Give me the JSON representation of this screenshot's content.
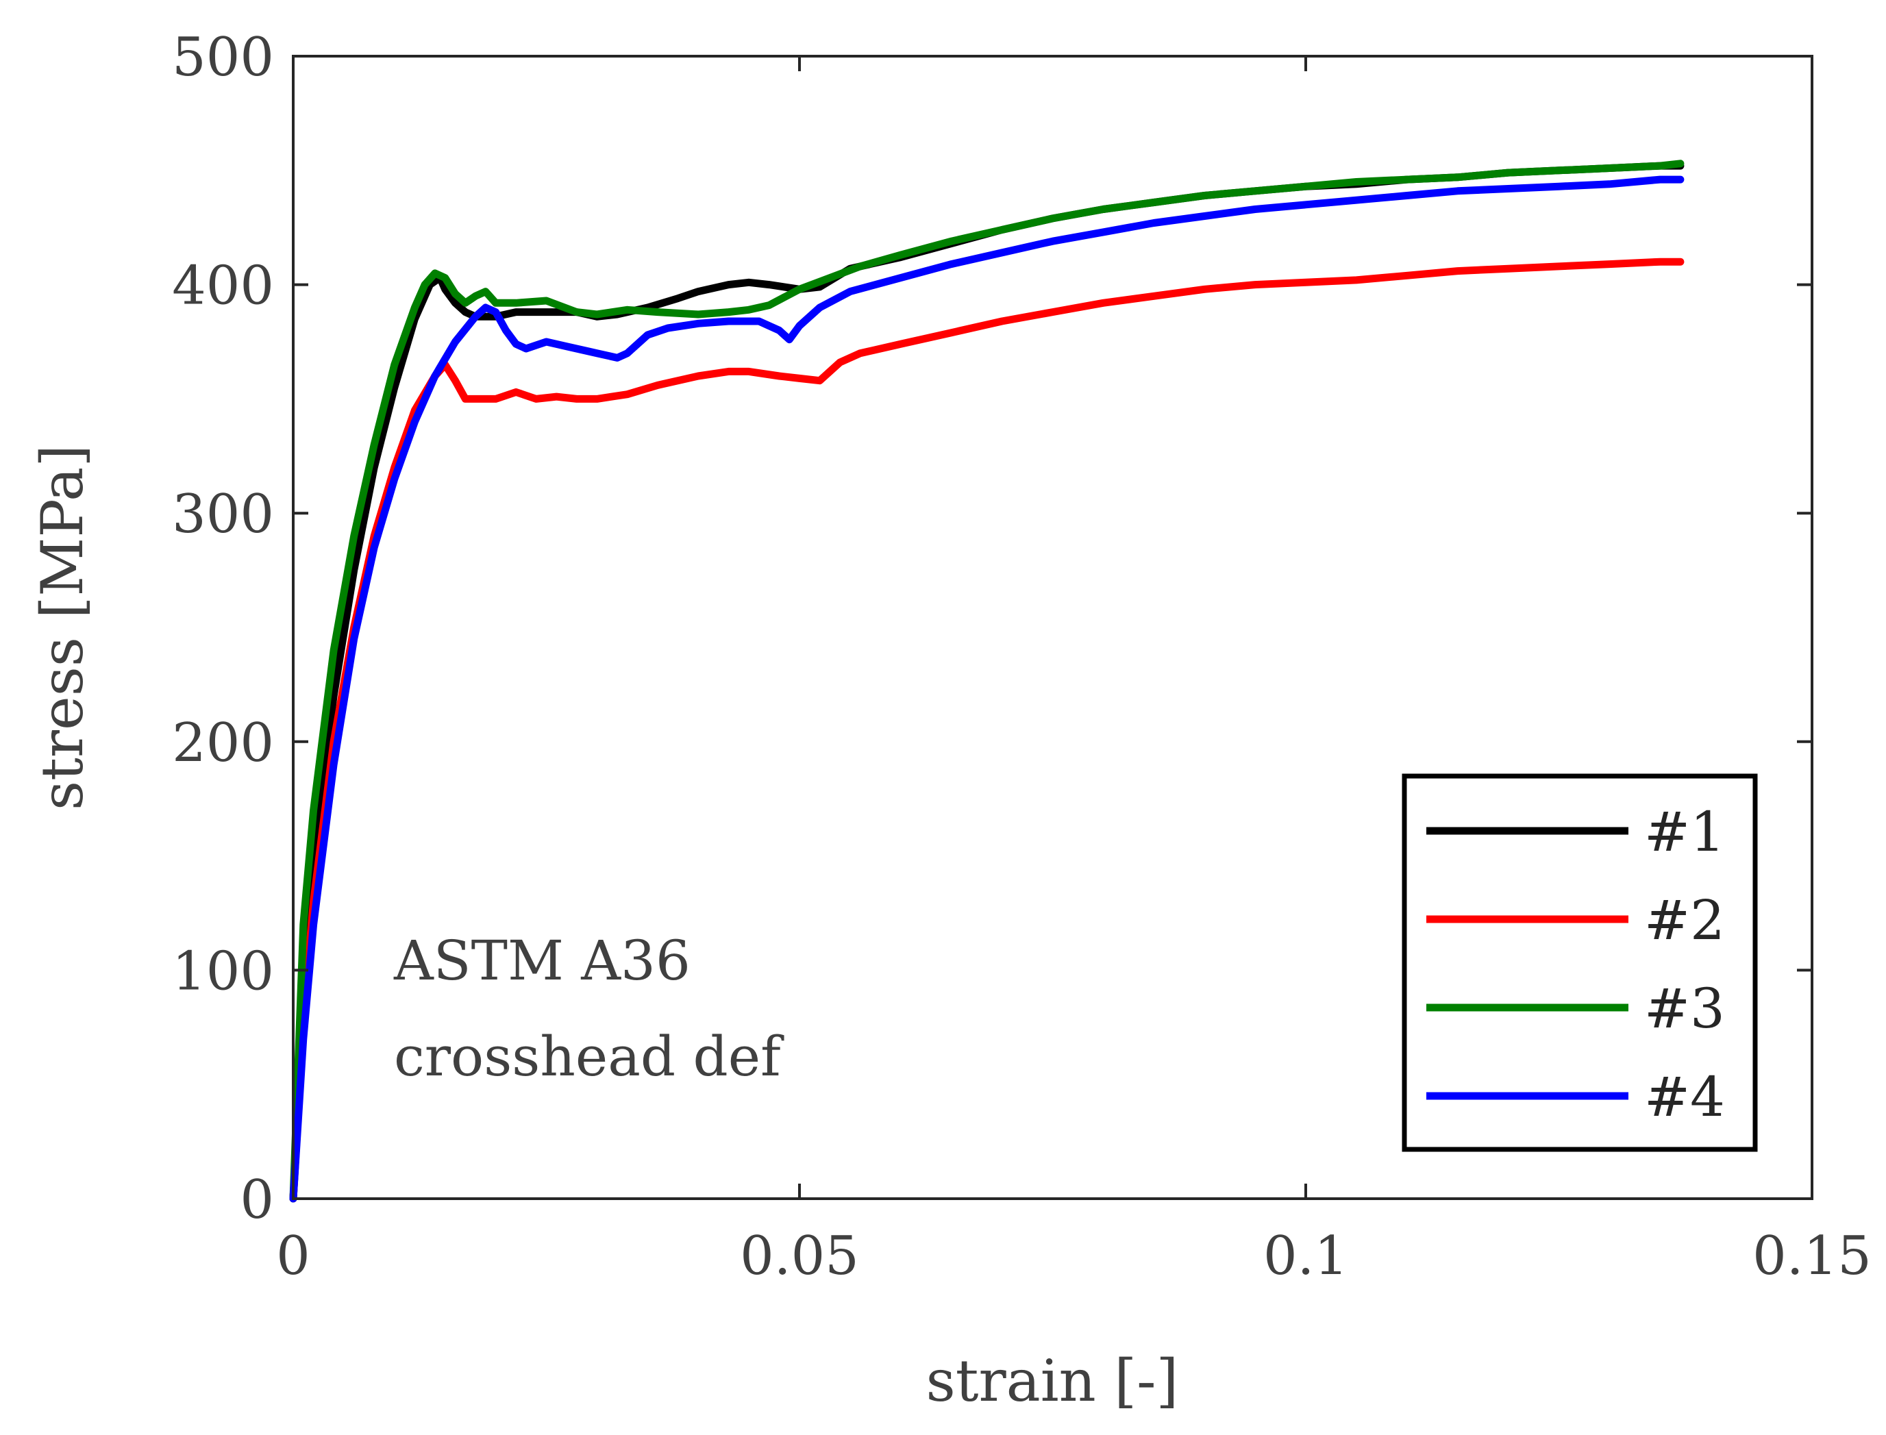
{
  "chart_data": {
    "type": "line",
    "title": "",
    "xlabel": "strain [-]",
    "ylabel": "stress [MPa]",
    "xlim": [
      0,
      0.15
    ],
    "ylim": [
      0,
      500
    ],
    "xticks": [
      0,
      0.05,
      0.1,
      0.15
    ],
    "xtick_labels": [
      "0",
      "0.05",
      "0.1",
      "0.15"
    ],
    "yticks": [
      0,
      100,
      200,
      300,
      400,
      500
    ],
    "ytick_labels": [
      "0",
      "100",
      "200",
      "300",
      "400",
      "500"
    ],
    "grid": false,
    "legend_position": "bottom-right",
    "annotations": [
      "ASTM A36",
      "crosshead def"
    ],
    "series": [
      {
        "name": "#1",
        "color": "#000000",
        "x": [
          0,
          0.002,
          0.004,
          0.006,
          0.008,
          0.01,
          0.012,
          0.0135,
          0.0145,
          0.015,
          0.016,
          0.017,
          0.018,
          0.02,
          0.022,
          0.025,
          0.028,
          0.03,
          0.032,
          0.035,
          0.038,
          0.04,
          0.043,
          0.045,
          0.047,
          0.05,
          0.052,
          0.055,
          0.06,
          0.065,
          0.07,
          0.075,
          0.08,
          0.085,
          0.09,
          0.095,
          0.1,
          0.105,
          0.11,
          0.115,
          0.12,
          0.125,
          0.13,
          0.135,
          0.137
        ],
        "y": [
          0,
          150,
          220,
          275,
          320,
          355,
          385,
          400,
          403,
          398,
          392,
          388,
          386,
          386,
          388,
          388,
          388,
          386,
          387,
          390,
          394,
          397,
          400,
          401,
          400,
          398,
          399,
          407,
          412,
          418,
          424,
          429,
          433,
          436,
          439,
          441,
          443,
          444,
          446,
          447,
          449,
          450,
          451,
          452,
          452
        ]
      },
      {
        "name": "#2",
        "color": "#ff0000",
        "x": [
          0,
          0.001,
          0.002,
          0.004,
          0.006,
          0.008,
          0.01,
          0.012,
          0.014,
          0.015,
          0.016,
          0.017,
          0.018,
          0.02,
          0.022,
          0.024,
          0.026,
          0.028,
          0.03,
          0.033,
          0.036,
          0.04,
          0.043,
          0.045,
          0.048,
          0.05,
          0.052,
          0.054,
          0.056,
          0.06,
          0.065,
          0.07,
          0.075,
          0.08,
          0.085,
          0.09,
          0.095,
          0.1,
          0.105,
          0.11,
          0.115,
          0.12,
          0.125,
          0.13,
          0.135,
          0.137
        ],
        "y": [
          0,
          80,
          130,
          200,
          250,
          290,
          320,
          345,
          360,
          365,
          358,
          350,
          350,
          350,
          353,
          350,
          351,
          350,
          350,
          352,
          356,
          360,
          362,
          362,
          360,
          359,
          358,
          366,
          370,
          374,
          379,
          384,
          388,
          392,
          395,
          398,
          400,
          401,
          402,
          404,
          406,
          407,
          408,
          409,
          410,
          410
        ]
      },
      {
        "name": "#3",
        "color": "#008000",
        "x": [
          0,
          0.001,
          0.002,
          0.004,
          0.006,
          0.008,
          0.01,
          0.012,
          0.013,
          0.014,
          0.015,
          0.016,
          0.017,
          0.018,
          0.019,
          0.02,
          0.022,
          0.025,
          0.028,
          0.03,
          0.033,
          0.036,
          0.04,
          0.043,
          0.045,
          0.047,
          0.05,
          0.053,
          0.056,
          0.06,
          0.065,
          0.07,
          0.075,
          0.08,
          0.085,
          0.09,
          0.095,
          0.1,
          0.105,
          0.11,
          0.115,
          0.12,
          0.125,
          0.13,
          0.135,
          0.137
        ],
        "y": [
          0,
          120,
          170,
          240,
          290,
          330,
          365,
          390,
          400,
          405,
          403,
          396,
          392,
          395,
          397,
          392,
          392,
          393,
          388,
          387,
          389,
          388,
          387,
          388,
          389,
          391,
          398,
          403,
          408,
          413,
          419,
          424,
          429,
          433,
          436,
          439,
          441,
          443,
          445,
          446,
          447,
          449,
          450,
          451,
          452,
          453
        ]
      },
      {
        "name": "#4",
        "color": "#0000ff",
        "x": [
          0,
          0.001,
          0.002,
          0.004,
          0.006,
          0.008,
          0.01,
          0.012,
          0.014,
          0.016,
          0.018,
          0.019,
          0.02,
          0.021,
          0.022,
          0.023,
          0.025,
          0.027,
          0.03,
          0.032,
          0.033,
          0.035,
          0.037,
          0.04,
          0.043,
          0.046,
          0.048,
          0.049,
          0.05,
          0.052,
          0.055,
          0.06,
          0.065,
          0.07,
          0.075,
          0.08,
          0.085,
          0.09,
          0.095,
          0.1,
          0.105,
          0.11,
          0.115,
          0.12,
          0.125,
          0.13,
          0.135,
          0.137
        ],
        "y": [
          0,
          70,
          120,
          190,
          245,
          285,
          315,
          340,
          360,
          375,
          386,
          390,
          388,
          380,
          374,
          372,
          375,
          373,
          370,
          368,
          370,
          378,
          381,
          383,
          384,
          384,
          380,
          376,
          382,
          390,
          397,
          403,
          409,
          414,
          419,
          423,
          427,
          430,
          433,
          435,
          437,
          439,
          441,
          442,
          443,
          444,
          446,
          446
        ]
      }
    ]
  }
}
